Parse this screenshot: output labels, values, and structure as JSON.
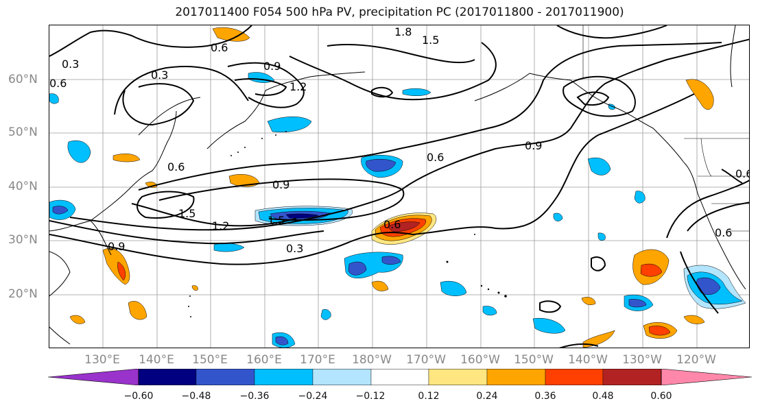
{
  "title": "2017011400 F054 500 hPa PV, precipitation PC (2017011800 - 2017011900)",
  "map": {
    "lat_labels": [
      "60°N",
      "50°N",
      "40°N",
      "30°N",
      "20°N"
    ],
    "lon_labels": [
      "130°E",
      "140°E",
      "150°E",
      "160°E",
      "170°E",
      "180°W",
      "170°W",
      "160°W",
      "150°W",
      "140°W",
      "130°W",
      "120°W"
    ],
    "contour_labels": [
      "1.8",
      "1.5",
      "0.6",
      "0.3",
      "0.3",
      "0.6",
      "0.9",
      "1.2",
      "0.6",
      "0.9",
      "0.6",
      "0.9",
      "1.5",
      "1.2",
      "1.5",
      "0.6",
      "0.3",
      "0.9",
      "0.6",
      "0.6"
    ],
    "grid": true
  },
  "colorbar": {
    "ticks": [
      "−0.60",
      "−0.48",
      "−0.36",
      "−0.24",
      "−0.12",
      "0.12",
      "0.24",
      "0.36",
      "0.48",
      "0.60"
    ],
    "colors": [
      "#9933cc",
      "#000080",
      "#3355cc",
      "#00bfff",
      "#b3e5ff",
      "#ffffff",
      "#ffe680",
      "#ffa500",
      "#ff4000",
      "#b22222",
      "#ff88aa"
    ],
    "extend": "both"
  }
}
